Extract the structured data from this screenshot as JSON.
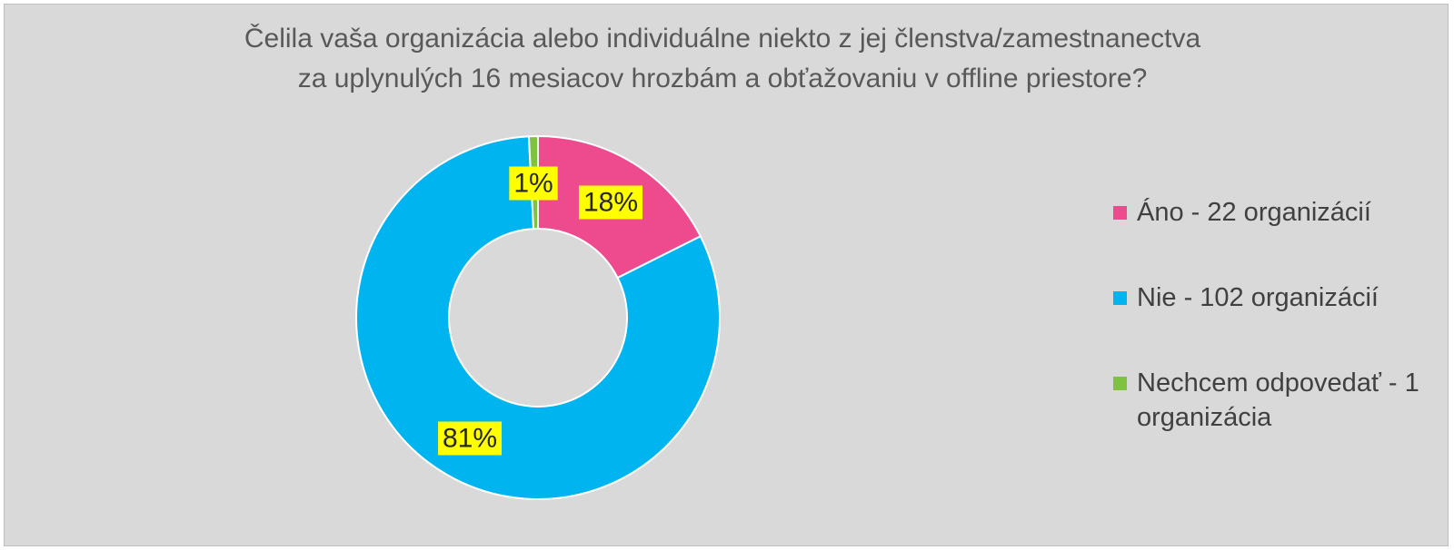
{
  "chart_data": {
    "type": "pie",
    "variant": "donut",
    "title": [
      "Čelila vaša organizácia alebo individuálne niekto z jej členstva/zamestnanectva",
      "za uplynulých 16 mesiacov  hrozbám a obťažovaniu v offline priestore?"
    ],
    "slices": [
      {
        "legend": "Áno - 22 organizácií",
        "value": 22,
        "label": "18%",
        "color": "#ee4b8e"
      },
      {
        "legend": "Nie - 102 organizácií",
        "value": 102,
        "label": "81%",
        "color": "#00b5ef"
      },
      {
        "legend": "Nechcem odpovedať - 1 organizácia",
        "value": 1,
        "label": "1%",
        "color": "#7fc241"
      }
    ],
    "legend_position": "right",
    "data_label_background": "#ffff00",
    "background": "#d9d9d9"
  }
}
